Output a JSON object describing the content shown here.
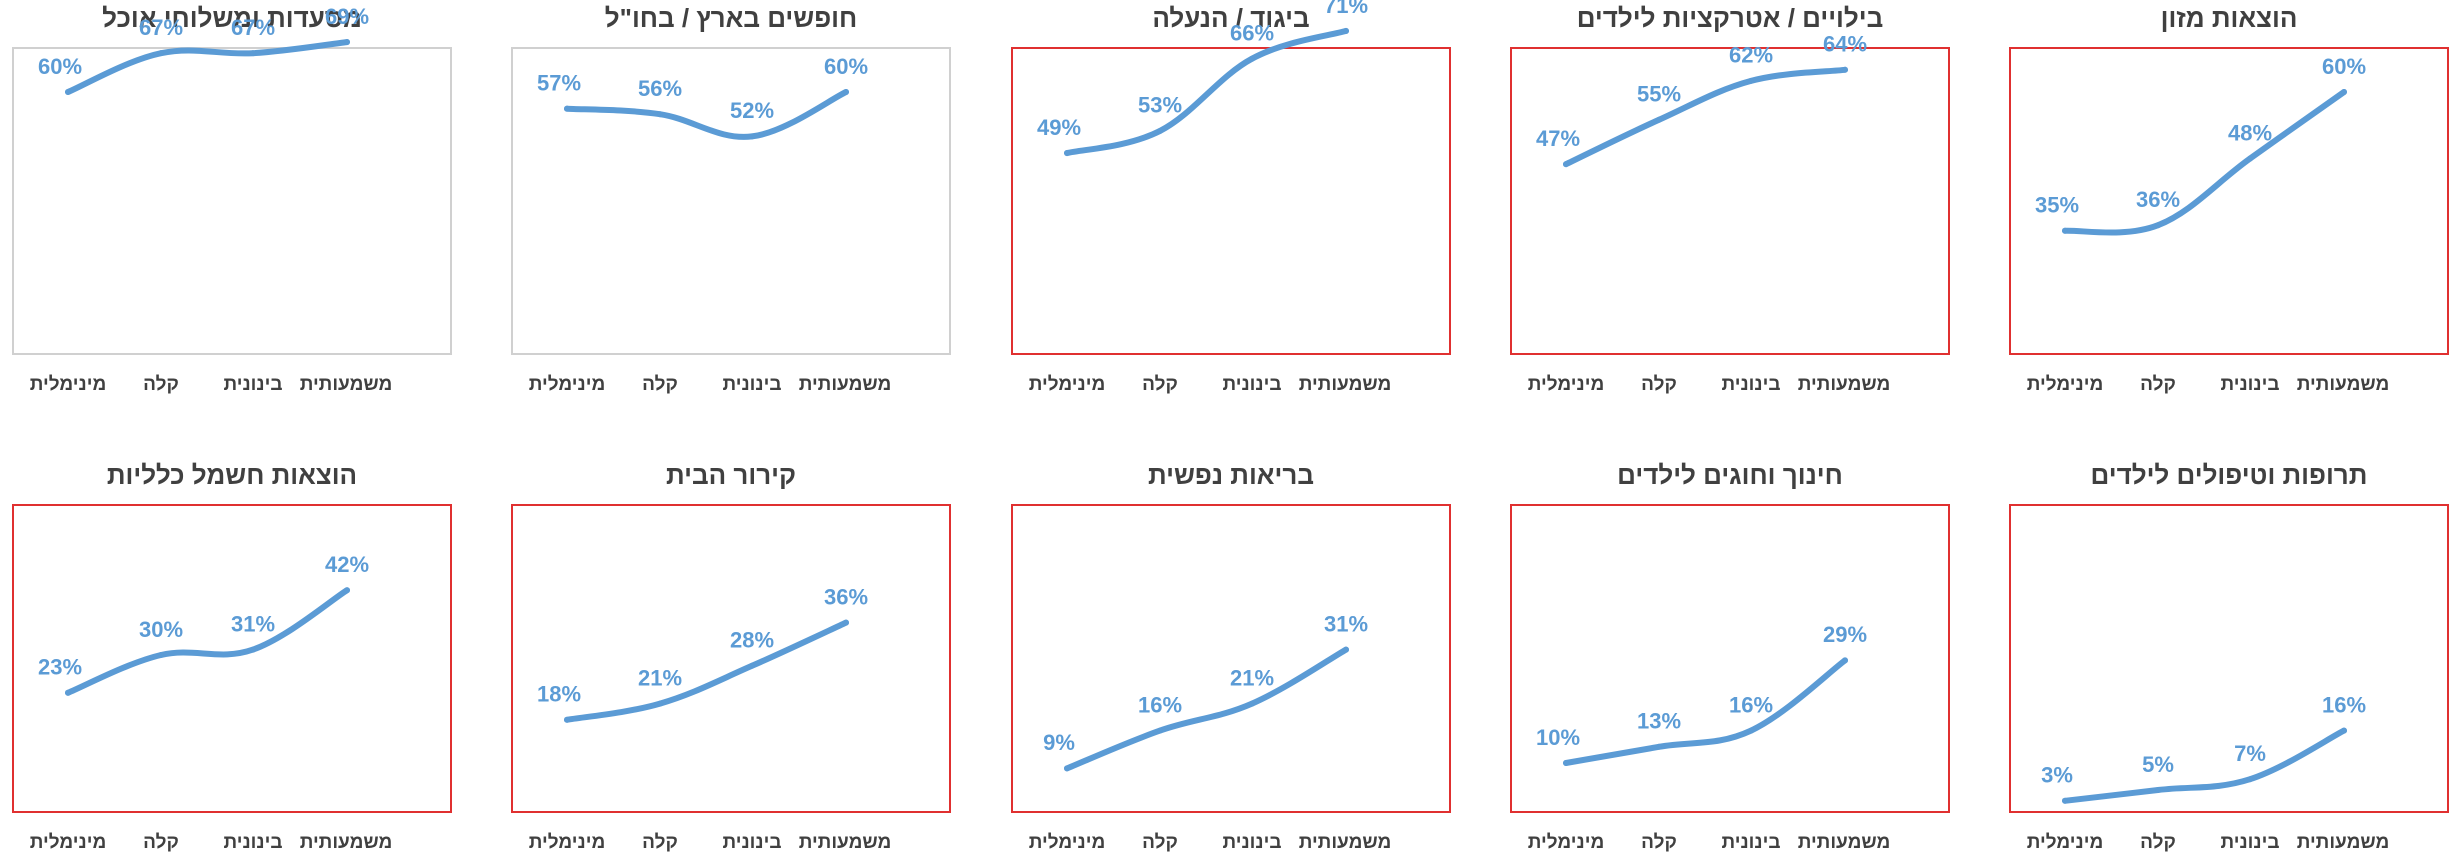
{
  "chart_data": [
    {
      "type": "line",
      "title": "הוצאות מזון",
      "categories": [
        "מינימלית",
        "קלה",
        "בינונית",
        "משמעותית"
      ],
      "values": [
        35,
        36,
        48,
        60
      ],
      "labels": [
        "35%",
        "36%",
        "48%",
        "60%"
      ],
      "ylim": [
        0,
        100
      ],
      "highlighted": true
    },
    {
      "type": "line",
      "title": "בילויים / אטרקציות לילדים",
      "categories": [
        "מינימלית",
        "קלה",
        "בינונית",
        "משמעותית"
      ],
      "values": [
        47,
        55,
        62,
        64
      ],
      "labels": [
        "47%",
        "55%",
        "62%",
        "64%"
      ],
      "ylim": [
        0,
        100
      ],
      "highlighted": true
    },
    {
      "type": "line",
      "title": "ביגוד / הנעלה",
      "categories": [
        "מינימלית",
        "קלה",
        "בינונית",
        "משמעותית"
      ],
      "values": [
        49,
        53,
        66,
        71
      ],
      "labels": [
        "49%",
        "53%",
        "66%",
        "71%"
      ],
      "ylim": [
        0,
        100
      ],
      "highlighted": true
    },
    {
      "type": "line",
      "title": "חופשים בארץ / בחו\"ל",
      "categories": [
        "מינימלית",
        "קלה",
        "בינונית",
        "משמעותית"
      ],
      "values": [
        57,
        56,
        52,
        60
      ],
      "labels": [
        "57%",
        "56%",
        "52%",
        "60%"
      ],
      "ylim": [
        0,
        100
      ],
      "highlighted": false
    },
    {
      "type": "line",
      "title": "מסעדות ומשלוחי אוכל",
      "categories": [
        "מינימלית",
        "קלה",
        "בינונית",
        "משמעותית"
      ],
      "values": [
        60,
        67,
        67,
        69
      ],
      "labels": [
        "60%",
        "67%",
        "67%",
        "69%"
      ],
      "ylim": [
        0,
        100
      ],
      "highlighted": false
    },
    {
      "type": "line",
      "title": "תרופות וטיפולים לילדים",
      "categories": [
        "מינימלית",
        "קלה",
        "בינונית",
        "משמעותית"
      ],
      "values": [
        3,
        5,
        7,
        16
      ],
      "labels": [
        "3%",
        "5%",
        "7%",
        "16%"
      ],
      "ylim": [
        0,
        100
      ],
      "highlighted": true
    },
    {
      "type": "line",
      "title": "חינוך וחוגים לילדים",
      "categories": [
        "מינימלית",
        "קלה",
        "בינונית",
        "משמעותית"
      ],
      "values": [
        10,
        13,
        16,
        29
      ],
      "labels": [
        "10%",
        "13%",
        "16%",
        "29%"
      ],
      "ylim": [
        0,
        100
      ],
      "highlighted": true
    },
    {
      "type": "line",
      "title": "בריאות נפשית",
      "categories": [
        "מינימלית",
        "קלה",
        "בינונית",
        "משמעותית"
      ],
      "values": [
        9,
        16,
        21,
        31
      ],
      "labels": [
        "9%",
        "16%",
        "21%",
        "31%"
      ],
      "ylim": [
        0,
        100
      ],
      "highlighted": true
    },
    {
      "type": "line",
      "title": "קירור הבית",
      "categories": [
        "מינימלית",
        "קלה",
        "בינונית",
        "משמעותית"
      ],
      "values": [
        18,
        21,
        28,
        36
      ],
      "labels": [
        "18%",
        "21%",
        "28%",
        "36%"
      ],
      "ylim": [
        0,
        100
      ],
      "highlighted": true
    },
    {
      "type": "line",
      "title": "הוצאות חשמל כלליות",
      "categories": [
        "מינימלית",
        "קלה",
        "בינונית",
        "משמעותית"
      ],
      "values": [
        23,
        30,
        31,
        42
      ],
      "labels": [
        "23%",
        "30%",
        "31%",
        "42%"
      ],
      "ylim": [
        0,
        100
      ],
      "highlighted": true
    }
  ],
  "colors": {
    "line": "#5b9bd5",
    "data_label": "#5b9bd5",
    "title": "#404040",
    "tick_label": "#404040",
    "highlight_border": "#e03030",
    "plain_border": "#d0d0d0"
  }
}
